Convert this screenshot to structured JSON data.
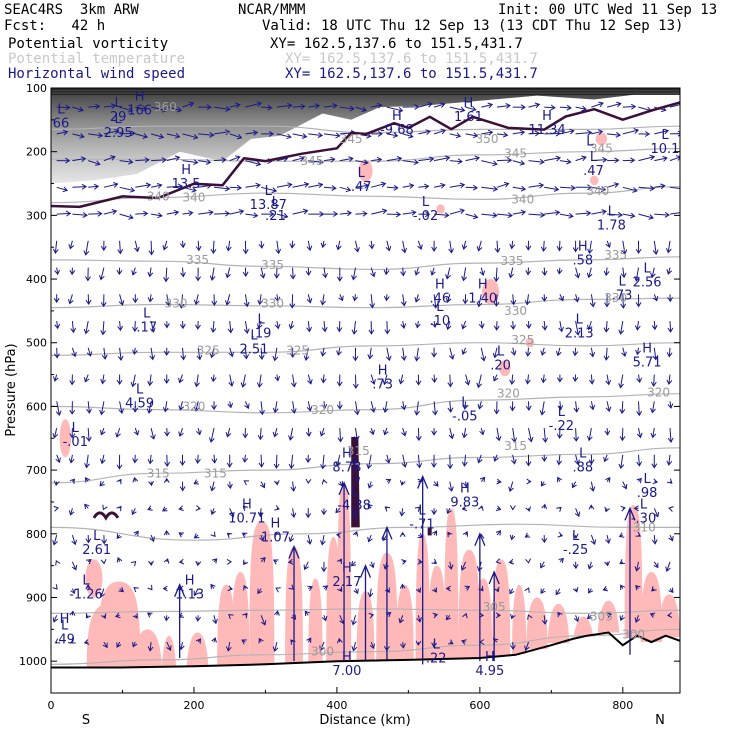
{
  "header": {
    "model": "SEAC4RS  3km ARW",
    "org": "NCAR/MMM",
    "init": "Init: 00 UTC Wed 11 Sep 13",
    "fcst": "Fcst:   42 h",
    "valid": "Valid: 18 UTC Thu 12 Sep 13 (13 CDT Thu 12 Sep 13)"
  },
  "legend": [
    {
      "label": "Potential vorticity",
      "xy": "XY= 162.5,137.6 to 151.5,431.7",
      "color": "#000000",
      "xy_color": "#000000"
    },
    {
      "label": "Potential temperature",
      "xy": "XY= 162.5,137.6 to 151.5,431.7",
      "color": "#c8c8c8",
      "xy_color": "#c8c8c8"
    },
    {
      "label": "Horizontal wind speed",
      "xy": "XY= 162.5,137.6 to 151.5,431.7",
      "color": "#1a1a8a",
      "xy_color": "#1a1a8a"
    }
  ],
  "chart_data": {
    "type": "cross-section",
    "xlabel": "Distance (km)",
    "ylabel": "Pressure (hPa)",
    "xlim": [
      0,
      880
    ],
    "ylim": [
      1050,
      100
    ],
    "x_ticks": [
      0,
      200,
      400,
      600,
      800
    ],
    "y_ticks": [
      100,
      200,
      300,
      400,
      500,
      600,
      700,
      800,
      900,
      1000
    ],
    "left_end_label": "S",
    "right_end_label": "N",
    "colors": {
      "theta": "#b4b4b4",
      "pv_contour": "#3a0f3a",
      "wind": "#1a1a8a",
      "shade": "#ffb9b9",
      "terrain": "#000000"
    },
    "theta_contours": [
      {
        "value": "300",
        "points": [
          [
            0,
            1005
          ],
          [
            150,
            998
          ],
          [
            300,
            990
          ],
          [
            450,
            985
          ],
          [
            600,
            975
          ],
          [
            750,
            960
          ],
          [
            880,
            950
          ]
        ]
      },
      {
        "value": "305",
        "points": [
          [
            0,
            925
          ],
          [
            150,
            922
          ],
          [
            300,
            920
          ],
          [
            450,
            918
          ],
          [
            600,
            920
          ],
          [
            750,
            925
          ],
          [
            880,
            920
          ]
        ]
      },
      {
        "value": "310",
        "points": [
          [
            0,
            790
          ],
          [
            200,
            810
          ],
          [
            350,
            800
          ],
          [
            500,
            790
          ],
          [
            650,
            785
          ],
          [
            800,
            790
          ],
          [
            880,
            790
          ]
        ]
      },
      {
        "value": "315",
        "points": [
          [
            0,
            720
          ],
          [
            150,
            705
          ],
          [
            300,
            700
          ],
          [
            450,
            690
          ],
          [
            600,
            680
          ],
          [
            750,
            675
          ],
          [
            880,
            665
          ]
        ]
      },
      {
        "value": "320",
        "points": [
          [
            0,
            600
          ],
          [
            150,
            605
          ],
          [
            300,
            610
          ],
          [
            450,
            605
          ],
          [
            600,
            590
          ],
          [
            750,
            585
          ],
          [
            880,
            580
          ]
        ]
      },
      {
        "value": "325",
        "points": [
          [
            0,
            520
          ],
          [
            150,
            515
          ],
          [
            300,
            515
          ],
          [
            450,
            505
          ],
          [
            600,
            500
          ],
          [
            750,
            505
          ],
          [
            880,
            500
          ]
        ]
      },
      {
        "value": "330",
        "points": [
          [
            0,
            445
          ],
          [
            150,
            440
          ],
          [
            300,
            442
          ],
          [
            450,
            445
          ],
          [
            600,
            440
          ],
          [
            750,
            432
          ],
          [
            880,
            430
          ]
        ]
      },
      {
        "value": "335",
        "points": [
          [
            0,
            370
          ],
          [
            150,
            372
          ],
          [
            300,
            380
          ],
          [
            450,
            385
          ],
          [
            600,
            375
          ],
          [
            750,
            370
          ],
          [
            880,
            365
          ]
        ]
      },
      {
        "value": "340",
        "points": [
          [
            0,
            280
          ],
          [
            150,
            272
          ],
          [
            300,
            265
          ],
          [
            450,
            270
          ],
          [
            600,
            275
          ],
          [
            750,
            265
          ],
          [
            880,
            255
          ]
        ]
      },
      {
        "value": "345",
        "points": [
          [
            0,
            212
          ],
          [
            150,
            212
          ],
          [
            300,
            215
          ],
          [
            450,
            215
          ],
          [
            600,
            205
          ],
          [
            750,
            200
          ],
          [
            880,
            195
          ]
        ]
      },
      {
        "value": "350",
        "points": [
          [
            0,
            165
          ],
          [
            150,
            160
          ],
          [
            300,
            160
          ],
          [
            450,
            170
          ],
          [
            600,
            165
          ],
          [
            750,
            165
          ],
          [
            880,
            160
          ]
        ]
      }
    ],
    "theta_labels": [
      {
        "text": "300",
        "x": 380,
        "p": 985
      },
      {
        "text": "300",
        "x": 815,
        "p": 958
      },
      {
        "text": "305",
        "x": 620,
        "p": 915
      },
      {
        "text": "305",
        "x": 770,
        "p": 930
      },
      {
        "text": "310",
        "x": 830,
        "p": 790
      },
      {
        "text": "315",
        "x": 150,
        "p": 705
      },
      {
        "text": "315",
        "x": 230,
        "p": 705
      },
      {
        "text": "315",
        "x": 430,
        "p": 670
      },
      {
        "text": "315",
        "x": 650,
        "p": 662
      },
      {
        "text": "320",
        "x": 200,
        "p": 600
      },
      {
        "text": "320",
        "x": 380,
        "p": 606
      },
      {
        "text": "320",
        "x": 640,
        "p": 580
      },
      {
        "text": "320",
        "x": 850,
        "p": 578
      },
      {
        "text": "325",
        "x": 220,
        "p": 512
      },
      {
        "text": "325",
        "x": 345,
        "p": 512
      },
      {
        "text": "325",
        "x": 660,
        "p": 496
      },
      {
        "text": "330",
        "x": 175,
        "p": 438
      },
      {
        "text": "330",
        "x": 310,
        "p": 438
      },
      {
        "text": "330",
        "x": 650,
        "p": 450
      },
      {
        "text": "330",
        "x": 790,
        "p": 430
      },
      {
        "text": "335",
        "x": 205,
        "p": 370
      },
      {
        "text": "335",
        "x": 310,
        "p": 378
      },
      {
        "text": "335",
        "x": 645,
        "p": 372
      },
      {
        "text": "335",
        "x": 790,
        "p": 362
      },
      {
        "text": "340",
        "x": 150,
        "p": 270
      },
      {
        "text": "340",
        "x": 200,
        "p": 272
      },
      {
        "text": "340",
        "x": 660,
        "p": 275
      },
      {
        "text": "340",
        "x": 765,
        "p": 262
      },
      {
        "text": "345",
        "x": 365,
        "p": 215
      },
      {
        "text": "345",
        "x": 650,
        "p": 203
      },
      {
        "text": "345",
        "x": 770,
        "p": 195
      },
      {
        "text": "345",
        "x": 420,
        "p": 180
      },
      {
        "text": "350",
        "x": 610,
        "p": 180
      },
      {
        "text": "350",
        "x": 260,
        "p": 165
      },
      {
        "text": "360",
        "x": 160,
        "p": 130
      }
    ],
    "pv_line": [
      [
        0,
        290
      ],
      [
        40,
        282
      ],
      [
        100,
        275
      ],
      [
        150,
        268
      ],
      [
        200,
        255
      ],
      [
        240,
        248
      ],
      [
        270,
        215
      ],
      [
        300,
        210
      ],
      [
        350,
        208
      ],
      [
        400,
        190
      ],
      [
        420,
        175
      ],
      [
        440,
        168
      ],
      [
        480,
        160
      ],
      [
        500,
        158
      ],
      [
        530,
        150
      ],
      [
        560,
        160
      ],
      [
        590,
        150
      ],
      [
        640,
        158
      ],
      [
        690,
        170
      ],
      [
        720,
        140
      ],
      [
        760,
        138
      ],
      [
        800,
        145
      ],
      [
        840,
        140
      ],
      [
        880,
        118
      ]
    ],
    "pv_upper_band": {
      "top": 100,
      "bottom_points": [
        [
          0,
          250
        ],
        [
          60,
          245
        ],
        [
          120,
          235
        ],
        [
          180,
          200
        ],
        [
          240,
          215
        ],
        [
          280,
          180
        ],
        [
          320,
          175
        ],
        [
          380,
          140
        ],
        [
          420,
          150
        ],
        [
          460,
          130
        ],
        [
          520,
          128
        ],
        [
          600,
          120
        ],
        [
          680,
          112
        ],
        [
          760,
          118
        ],
        [
          820,
          110
        ],
        [
          880,
          110
        ]
      ]
    },
    "shade_columns": [
      [
        80,
        910,
        60
      ],
      [
        95,
        875,
        60
      ],
      [
        135,
        950,
        40
      ],
      [
        165,
        960,
        20
      ],
      [
        205,
        955,
        30
      ],
      [
        245,
        880,
        25
      ],
      [
        265,
        860,
        25
      ],
      [
        295,
        780,
        35
      ],
      [
        340,
        820,
        25
      ],
      [
        370,
        870,
        20
      ],
      [
        395,
        805,
        20
      ],
      [
        410,
        720,
        20
      ],
      [
        440,
        890,
        25
      ],
      [
        470,
        830,
        30
      ],
      [
        495,
        880,
        25
      ],
      [
        520,
        800,
        20
      ],
      [
        540,
        850,
        25
      ],
      [
        560,
        760,
        20
      ],
      [
        585,
        825,
        30
      ],
      [
        605,
        870,
        25
      ],
      [
        630,
        840,
        25
      ],
      [
        655,
        880,
        20
      ],
      [
        680,
        900,
        30
      ],
      [
        710,
        910,
        30
      ],
      [
        745,
        930,
        30
      ],
      [
        780,
        905,
        30
      ],
      [
        815,
        755,
        25
      ],
      [
        840,
        860,
        30
      ],
      [
        865,
        895,
        30
      ]
    ],
    "shade_blobs": [
      [
        20,
        650,
        8,
        60
      ],
      [
        60,
        870,
        12,
        60
      ],
      [
        440,
        230,
        10,
        35
      ],
      [
        545,
        290,
        6,
        15
      ],
      [
        615,
        420,
        12,
        40
      ],
      [
        635,
        540,
        8,
        25
      ],
      [
        670,
        500,
        6,
        15
      ],
      [
        770,
        180,
        8,
        20
      ],
      [
        760,
        245,
        6,
        15
      ]
    ],
    "terrain": [
      [
        0,
        1010
      ],
      [
        100,
        1010
      ],
      [
        200,
        1008
      ],
      [
        300,
        1005
      ],
      [
        400,
        1000
      ],
      [
        500,
        998
      ],
      [
        600,
        995
      ],
      [
        650,
        990
      ],
      [
        700,
        975
      ],
      [
        730,
        965
      ],
      [
        750,
        960
      ],
      [
        780,
        955
      ],
      [
        800,
        975
      ],
      [
        820,
        960
      ],
      [
        840,
        970
      ],
      [
        860,
        960
      ],
      [
        880,
        968
      ]
    ],
    "extrema": [
      {
        "type": "L",
        "value": "-.01",
        "x": 20,
        "p": 640
      },
      {
        "type": "L",
        "value": "4.59",
        "x": 110,
        "p": 580
      },
      {
        "type": "L",
        "value": ".17",
        "x": 120,
        "p": 460
      },
      {
        "type": "L",
        "value": "-1.26",
        "x": 35,
        "p": 880
      },
      {
        "type": "H",
        "value": "",
        "x": 5,
        "p": 940
      },
      {
        "type": "L",
        "value": ".49",
        "x": 5,
        "p": 950
      },
      {
        "type": "L",
        "value": "2.61",
        "x": 50,
        "p": 810
      },
      {
        "type": "H",
        "value": "1.13",
        "x": 180,
        "p": 880
      },
      {
        "type": "L",
        "value": ".19",
        "x": 280,
        "p": 470
      },
      {
        "type": "L",
        "value": "2.51",
        "x": 270,
        "p": 495
      },
      {
        "type": "H",
        "value": "10.71",
        "x": 260,
        "p": 760
      },
      {
        "type": "H",
        "value": "1.07",
        "x": 300,
        "p": 790
      },
      {
        "type": "H",
        "value": "2.17",
        "x": 400,
        "p": 860
      },
      {
        "type": "H",
        "value": "8.78",
        "x": 400,
        "p": 680
      },
      {
        "type": "L",
        "value": "-4.38",
        "x": 410,
        "p": 740
      },
      {
        "type": "H",
        "value": ".73",
        "x": 450,
        "p": 550
      },
      {
        "type": "L",
        "value": "-.71",
        "x": 505,
        "p": 770
      },
      {
        "type": "H",
        "value": "9.83",
        "x": 565,
        "p": 735
      },
      {
        "type": "L",
        "value": ".22",
        "x": 525,
        "p": 980
      },
      {
        "type": "H",
        "value": "7.00",
        "x": 400,
        "p": 1000
      },
      {
        "type": "H",
        "value": "4.95",
        "x": 600,
        "p": 1000
      },
      {
        "type": "H",
        "value": ".46",
        "x": 530,
        "p": 415
      },
      {
        "type": "H",
        "value": "1.40",
        "x": 590,
        "p": 415
      },
      {
        "type": "L",
        "value": ".10",
        "x": 530,
        "p": 450
      },
      {
        "type": "L",
        "value": ".20",
        "x": 615,
        "p": 520
      },
      {
        "type": "L",
        "value": "-.05",
        "x": 565,
        "p": 600
      },
      {
        "type": "L",
        "value": "-.22",
        "x": 700,
        "p": 615
      },
      {
        "type": "L",
        "value": ".88",
        "x": 730,
        "p": 680
      },
      {
        "type": "L",
        "value": "-.25",
        "x": 720,
        "p": 810
      },
      {
        "type": "L",
        "value": "-.30",
        "x": 815,
        "p": 760
      },
      {
        "type": "L",
        "value": ".98",
        "x": 820,
        "p": 720
      },
      {
        "type": "H",
        "value": "5.71",
        "x": 820,
        "p": 515
      },
      {
        "type": "L",
        "value": "2.13",
        "x": 725,
        "p": 470
      },
      {
        "type": "L",
        "value": ".73",
        "x": 785,
        "p": 410
      },
      {
        "type": "L",
        "value": "2.56",
        "x": 820,
        "p": 390
      },
      {
        "type": "H",
        "value": ".58",
        "x": 730,
        "p": 355
      },
      {
        "type": "L",
        "value": "1.78",
        "x": 770,
        "p": 300
      },
      {
        "type": "L",
        "value": "-.02",
        "x": 510,
        "p": 285
      },
      {
        "type": "L",
        "value": ".21",
        "x": 300,
        "p": 285
      },
      {
        "type": "L",
        "value": "13.87",
        "x": 290,
        "p": 268
      },
      {
        "type": "H",
        "value": "13.5",
        "x": 175,
        "p": 235
      },
      {
        "type": "L",
        "value": ".47",
        "x": 420,
        "p": 240
      },
      {
        "type": "L",
        "value": ".47",
        "x": 745,
        "p": 215
      },
      {
        "type": "H",
        "value": "-9.68",
        "x": 470,
        "p": 150
      },
      {
        "type": "H",
        "value": "1.61",
        "x": 570,
        "p": 130
      },
      {
        "type": "H",
        "value": "11.34",
        "x": 680,
        "p": 150
      },
      {
        "type": "L",
        "value": "",
        "x": 740,
        "p": 190
      },
      {
        "type": "L",
        "value": "2.95",
        "x": 80,
        "p": 155
      },
      {
        "type": "L",
        "value": "29",
        "x": 80,
        "p": 130
      },
      {
        "type": "H",
        "value": "166",
        "x": 110,
        "p": 120
      },
      {
        "type": "L",
        "value": "66",
        "x": 0,
        "p": 140
      },
      {
        "type": "L",
        "value": "10.1",
        "x": 845,
        "p": 180
      }
    ]
  }
}
